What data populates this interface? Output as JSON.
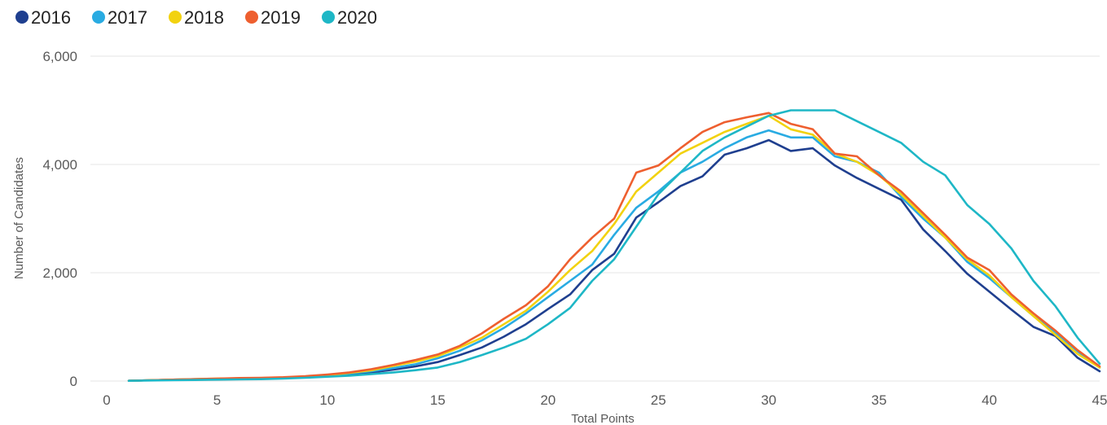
{
  "chart_data": {
    "type": "line",
    "title": "",
    "xlabel": "Total Points",
    "ylabel": "Number of Candidates",
    "xlim": [
      0,
      45
    ],
    "ylim": [
      0,
      6000
    ],
    "x_ticks": [
      "0",
      "5",
      "10",
      "15",
      "20",
      "25",
      "30",
      "35",
      "40",
      "45"
    ],
    "y_ticks": [
      "0",
      "2,000",
      "4,000",
      "6,000"
    ],
    "grid": true,
    "legend_position": "top-left",
    "x": [
      1,
      2,
      3,
      4,
      5,
      6,
      7,
      8,
      9,
      10,
      11,
      12,
      13,
      14,
      15,
      16,
      17,
      18,
      19,
      20,
      21,
      22,
      23,
      24,
      25,
      26,
      27,
      28,
      29,
      30,
      31,
      32,
      33,
      34,
      35,
      36,
      37,
      38,
      39,
      40,
      41,
      42,
      43,
      44,
      45
    ],
    "series": [
      {
        "name": "2016",
        "color": "#1f3f8f",
        "values": [
          5,
          15,
          25,
          30,
          35,
          40,
          45,
          55,
          70,
          90,
          120,
          160,
          210,
          270,
          350,
          480,
          620,
          820,
          1050,
          1330,
          1600,
          2050,
          2350,
          3020,
          3300,
          3600,
          3780,
          4180,
          4300,
          4450,
          4250,
          4300,
          3980,
          3750,
          3550,
          3350,
          2800,
          2400,
          1980,
          1650,
          1320,
          1000,
          830,
          430,
          180
        ]
      },
      {
        "name": "2017",
        "color": "#29abe2",
        "values": [
          5,
          15,
          25,
          35,
          40,
          45,
          50,
          60,
          75,
          100,
          140,
          180,
          240,
          310,
          420,
          560,
          750,
          980,
          1250,
          1550,
          1850,
          2150,
          2700,
          3200,
          3500,
          3850,
          4050,
          4300,
          4500,
          4630,
          4500,
          4500,
          4150,
          4050,
          3850,
          3400,
          3000,
          2650,
          2200,
          1900,
          1550,
          1200,
          900,
          550,
          250
        ]
      },
      {
        "name": "2018",
        "color": "#f2d20f",
        "values": [
          5,
          15,
          25,
          35,
          45,
          50,
          55,
          65,
          80,
          110,
          150,
          200,
          280,
          360,
          460,
          620,
          800,
          1050,
          1300,
          1650,
          2050,
          2400,
          2900,
          3500,
          3850,
          4200,
          4400,
          4600,
          4750,
          4900,
          4650,
          4550,
          4200,
          4050,
          3800,
          3450,
          3050,
          2650,
          2250,
          1950,
          1550,
          1200,
          850,
          500,
          250
        ]
      },
      {
        "name": "2019",
        "color": "#ee5f2f",
        "values": [
          5,
          15,
          25,
          35,
          45,
          55,
          60,
          70,
          90,
          120,
          160,
          220,
          300,
          390,
          490,
          650,
          880,
          1150,
          1400,
          1750,
          2250,
          2650,
          3000,
          3850,
          3980,
          4300,
          4600,
          4780,
          4870,
          4950,
          4750,
          4650,
          4200,
          4150,
          3800,
          3500,
          3100,
          2700,
          2280,
          2050,
          1600,
          1250,
          930,
          570,
          270
        ]
      },
      {
        "name": "2020",
        "color": "#1eb7c6",
        "values": [
          5,
          10,
          15,
          20,
          25,
          30,
          35,
          45,
          60,
          80,
          100,
          130,
          160,
          200,
          250,
          350,
          480,
          620,
          780,
          1050,
          1350,
          1850,
          2250,
          2850,
          3450,
          3850,
          4250,
          4500,
          4700,
          4900,
          5000,
          5000,
          5000,
          4800,
          4600,
          4400,
          4050,
          3800,
          3250,
          2900,
          2450,
          1850,
          1380,
          800,
          320
        ]
      }
    ]
  }
}
